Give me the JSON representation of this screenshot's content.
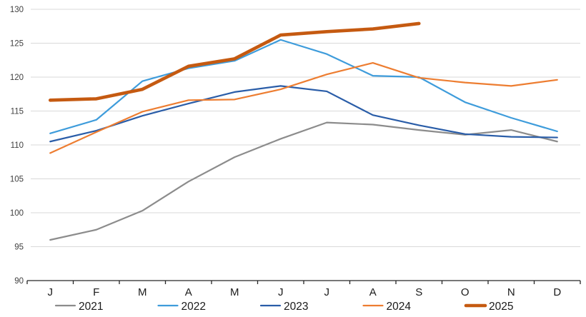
{
  "chart_data": {
    "type": "line",
    "title": "",
    "x_categories": [
      "J",
      "F",
      "M",
      "A",
      "M",
      "J",
      "J",
      "A",
      "S",
      "O",
      "N",
      "D"
    ],
    "ylim": [
      90,
      130
    ],
    "y_ticks": [
      90,
      95,
      100,
      105,
      110,
      115,
      120,
      125,
      130
    ],
    "grid": "horizontal",
    "legend_position": "bottom",
    "series": [
      {
        "name": "2021",
        "color": "#8C8C8C",
        "width": 2.2,
        "values": [
          96.0,
          97.5,
          100.3,
          104.6,
          108.2,
          110.9,
          113.3,
          113.0,
          112.2,
          111.5,
          112.2,
          110.5
        ]
      },
      {
        "name": "2022",
        "color": "#3E9CDB",
        "width": 2.2,
        "values": [
          111.7,
          113.7,
          119.4,
          121.3,
          122.4,
          125.5,
          123.4,
          120.2,
          120.0,
          116.3,
          114.0,
          112.0
        ]
      },
      {
        "name": "2023",
        "color": "#2A5DA8",
        "width": 2.2,
        "values": [
          110.5,
          112.1,
          114.3,
          116.1,
          117.8,
          118.7,
          117.9,
          114.4,
          112.9,
          111.6,
          111.2,
          111.1
        ]
      },
      {
        "name": "2024",
        "color": "#ED7D31",
        "width": 2.2,
        "values": [
          108.8,
          111.9,
          114.9,
          116.6,
          116.7,
          118.2,
          120.4,
          122.1,
          119.9,
          119.2,
          118.7,
          119.6
        ]
      },
      {
        "name": "2025",
        "color": "#C55A11",
        "width": 4.6,
        "values": [
          116.6,
          116.8,
          118.2,
          121.6,
          122.7,
          126.2,
          126.7,
          127.1,
          127.9,
          null,
          null,
          null
        ]
      }
    ],
    "colors": {
      "gridline": "#D9D9D9",
      "axis": "#262626",
      "y_label": "#404040",
      "x_label": "#1A1A1A",
      "legend_text": "#1A1A1A",
      "background": "#FFFFFF"
    }
  }
}
